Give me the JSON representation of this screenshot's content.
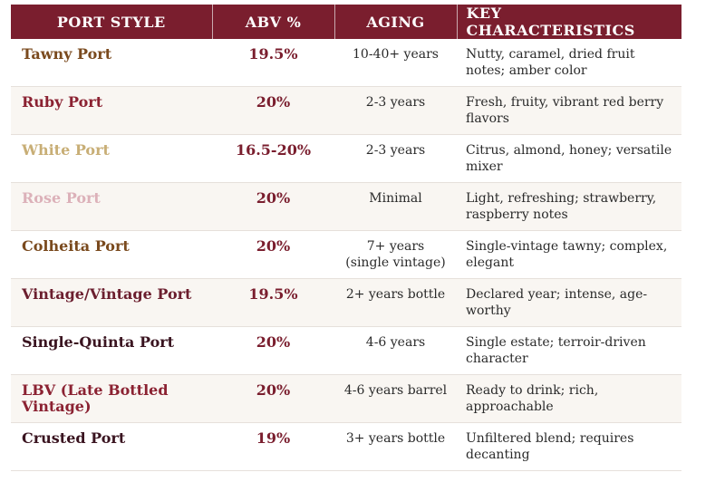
{
  "headers": [
    "PORT STYLE",
    "ABV %",
    "AGING",
    "KEY CHARACTERISTICS"
  ],
  "rows": [
    {
      "style": "Tawny Port",
      "color": "#7a4a1e",
      "abv": "19.5%",
      "aging": "10-40+ years",
      "key": "Nutty, caramel, dried fruit notes; amber color"
    },
    {
      "style": "Ruby Port",
      "color": "#8b2232",
      "abv": "20%",
      "aging": "2-3 years",
      "key": "Fresh, fruity, vibrant red berry flavors"
    },
    {
      "style": "White Port",
      "color": "#c8ae76",
      "abv": "16.5-20%",
      "aging": "2-3 years",
      "key": "Citrus, almond, honey; versatile mixer"
    },
    {
      "style": "Rose Port",
      "color": "#dcb1b9",
      "abv": "20%",
      "aging": "Minimal",
      "key": "Light, refreshing; strawberry, raspberry notes"
    },
    {
      "style": "Colheita Port",
      "color": "#7a4a1e",
      "abv": "20%",
      "aging": "7+ years (single vintage)",
      "key": "Single-vintage tawny; complex, elegant"
    },
    {
      "style": "Vintage/Vintage Port",
      "color": "#6b1e2e",
      "abv": "19.5%",
      "aging": "2+ years bottle",
      "key": "Declared year; intense, age-worthy"
    },
    {
      "style": "Single-Quinta Port",
      "color": "#3a1420",
      "abv": "20%",
      "aging": "4-6 years",
      "key": "Single estate; terroir-driven character"
    },
    {
      "style": "LBV (Late Bottled Vintage)",
      "color": "#8b2232",
      "abv": "20%",
      "aging": "4-6 years barrel",
      "key": "Ready to drink; rich, approachable"
    },
    {
      "style": "Crusted Port",
      "color": "#3a1420",
      "abv": "19%",
      "aging": "3+ years bottle",
      "key": "Unfiltered blend; requires decanting"
    }
  ]
}
